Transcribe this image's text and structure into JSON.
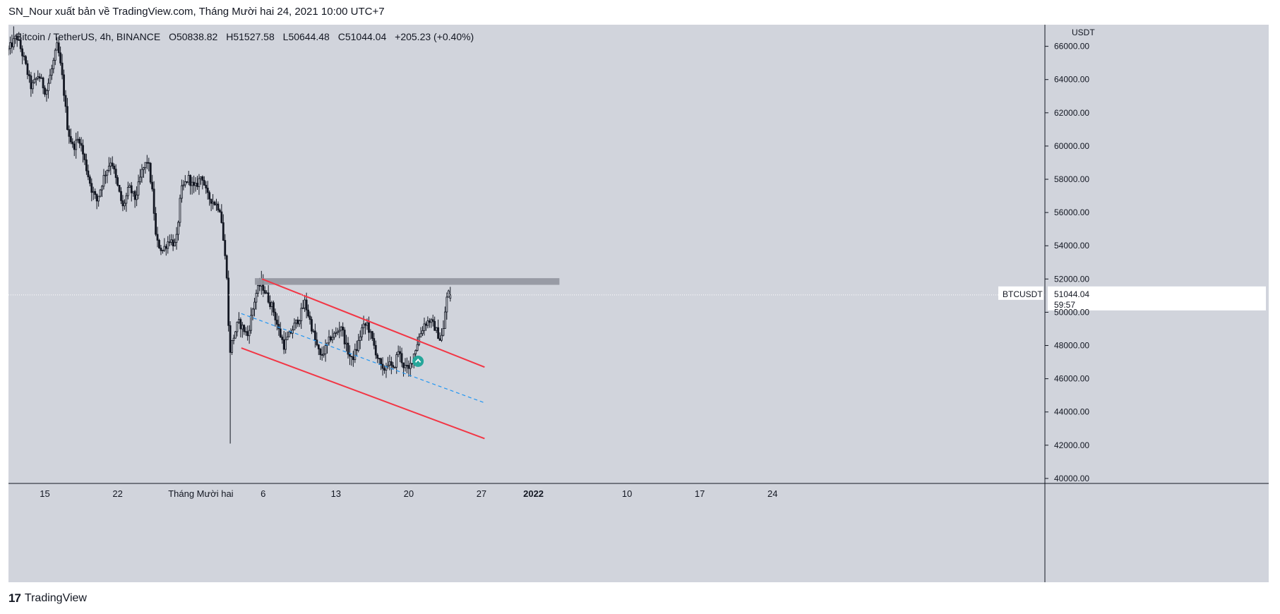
{
  "header": {
    "title": "SN_Nour xuất bản về TradingView.com, Tháng Mười hai 24, 2021 10:00 UTC+7"
  },
  "legend": {
    "symbol": "Bitcoin / TetherUS, 4h, BINANCE",
    "open": "O50838.82",
    "high": "H51527.58",
    "low": "L50644.48",
    "close": "C51044.04",
    "change": "+205.23 (+0.40%)"
  },
  "price_axis": {
    "unit": "USDT"
  },
  "last_price": {
    "ticker": "BTCUSDT",
    "value": "51044.04",
    "countdown": "59:57"
  },
  "footer": {
    "brand": "TradingView",
    "logo_text": "17"
  },
  "colors": {
    "background": "#d1d4dc",
    "candle": "#131722",
    "channel": "#f23645",
    "midline": "#2196f3",
    "zone": "#9598a1",
    "marker": "#26a69a"
  },
  "chart_data": {
    "type": "candlestick",
    "timeframe": "4h",
    "ylim": [
      39700,
      67300
    ],
    "y_ticks": [
      40000,
      42000,
      44000,
      46000,
      48000,
      50000,
      52000,
      54000,
      56000,
      58000,
      60000,
      62000,
      64000,
      66000
    ],
    "y_tick_labels": [
      "40000.00",
      "42000.00",
      "44000.00",
      "46000.00",
      "48000.00",
      "50000.00",
      "52000.00",
      "54000.00",
      "56000.00",
      "58000.00",
      "60000.00",
      "62000.00",
      "64000.00",
      "66000.00"
    ],
    "x_range_days": [
      -19.5,
      80.2
    ],
    "x_ticks": [
      {
        "day": -16,
        "label": "15"
      },
      {
        "day": -9,
        "label": "22"
      },
      {
        "day": -1,
        "label": "Tháng Mười hai"
      },
      {
        "day": 5,
        "label": "6"
      },
      {
        "day": 12,
        "label": "13"
      },
      {
        "day": 19,
        "label": "20"
      },
      {
        "day": 26,
        "label": "27"
      },
      {
        "day": 31,
        "label": "2022"
      },
      {
        "day": 40,
        "label": "10"
      },
      {
        "day": 47,
        "label": "17"
      },
      {
        "day": 54,
        "label": "24"
      }
    ],
    "price_path": [
      [
        -19.5,
        65800
      ],
      [
        -18.7,
        66600
      ],
      [
        -18.0,
        65200
      ],
      [
        -17.3,
        63500
      ],
      [
        -16.6,
        64300
      ],
      [
        -15.9,
        63200
      ],
      [
        -15.3,
        64700
      ],
      [
        -14.8,
        66100
      ],
      [
        -14.3,
        64000
      ],
      [
        -13.8,
        61000
      ],
      [
        -13.3,
        59900
      ],
      [
        -12.7,
        60500
      ],
      [
        -12.1,
        58900
      ],
      [
        -11.5,
        57400
      ],
      [
        -11.0,
        56700
      ],
      [
        -10.3,
        58200
      ],
      [
        -9.6,
        59200
      ],
      [
        -9.1,
        57800
      ],
      [
        -8.5,
        56300
      ],
      [
        -7.9,
        57500
      ],
      [
        -7.3,
        56800
      ],
      [
        -6.7,
        58400
      ],
      [
        -6.1,
        59200
      ],
      [
        -5.6,
        56900
      ],
      [
        -5.3,
        54300
      ],
      [
        -4.7,
        53700
      ],
      [
        -4.0,
        54400
      ],
      [
        -3.4,
        54000
      ],
      [
        -2.9,
        57300
      ],
      [
        -2.2,
        58100
      ],
      [
        -1.6,
        57400
      ],
      [
        -0.9,
        58300
      ],
      [
        -0.4,
        57000
      ],
      [
        0.3,
        56600
      ],
      [
        0.9,
        56200
      ],
      [
        1.2,
        54100
      ],
      [
        1.5,
        52300
      ],
      [
        1.75,
        47500
      ],
      [
        2.05,
        48300
      ],
      [
        2.6,
        49400
      ],
      [
        3.1,
        49000
      ],
      [
        3.5,
        48600
      ],
      [
        3.9,
        49900
      ],
      [
        4.3,
        51100
      ],
      [
        4.8,
        51800
      ],
      [
        5.4,
        50900
      ],
      [
        5.9,
        50300
      ],
      [
        6.5,
        48900
      ],
      [
        7.0,
        48000
      ],
      [
        7.5,
        48600
      ],
      [
        8.0,
        49200
      ],
      [
        8.5,
        49700
      ],
      [
        9.0,
        50600
      ],
      [
        9.5,
        49500
      ],
      [
        10.0,
        48300
      ],
      [
        10.5,
        47300
      ],
      [
        11.0,
        47800
      ],
      [
        11.5,
        48500
      ],
      [
        12.0,
        48700
      ],
      [
        12.5,
        49200
      ],
      [
        13.0,
        47900
      ],
      [
        13.5,
        47100
      ],
      [
        14.0,
        47800
      ],
      [
        14.5,
        49000
      ],
      [
        15.0,
        49300
      ],
      [
        15.5,
        48300
      ],
      [
        16.0,
        47300
      ],
      [
        16.5,
        46400
      ],
      [
        17.0,
        47000
      ],
      [
        17.5,
        46500
      ],
      [
        18.0,
        47700
      ],
      [
        18.5,
        46800
      ],
      [
        19.0,
        46500
      ],
      [
        19.5,
        47500
      ],
      [
        20.0,
        48500
      ],
      [
        20.5,
        49300
      ],
      [
        21.0,
        49500
      ],
      [
        21.5,
        49100
      ],
      [
        22.0,
        48400
      ],
      [
        22.3,
        48700
      ],
      [
        22.6,
        50700
      ],
      [
        22.8,
        51200
      ],
      [
        23.0,
        51044
      ]
    ],
    "range_extremes": {
      "max_high": 67200,
      "crash_low": 42100,
      "crash_low_day": 1.8
    },
    "annotations": {
      "resistance_zone": {
        "day_start": 4.2,
        "day_end": 33.5,
        "price_low": 51650,
        "price_high": 52050
      },
      "channel_upper": [
        [
          4.9,
          52000
        ],
        [
          26.3,
          46700
        ]
      ],
      "channel_lower": [
        [
          2.9,
          47850
        ],
        [
          26.3,
          42400
        ]
      ],
      "channel_mid": [
        [
          2.9,
          49920
        ],
        [
          26.3,
          44550
        ]
      ],
      "marker_up": {
        "day": 19.9,
        "price": 47050
      },
      "last_price": 51044.04
    }
  }
}
